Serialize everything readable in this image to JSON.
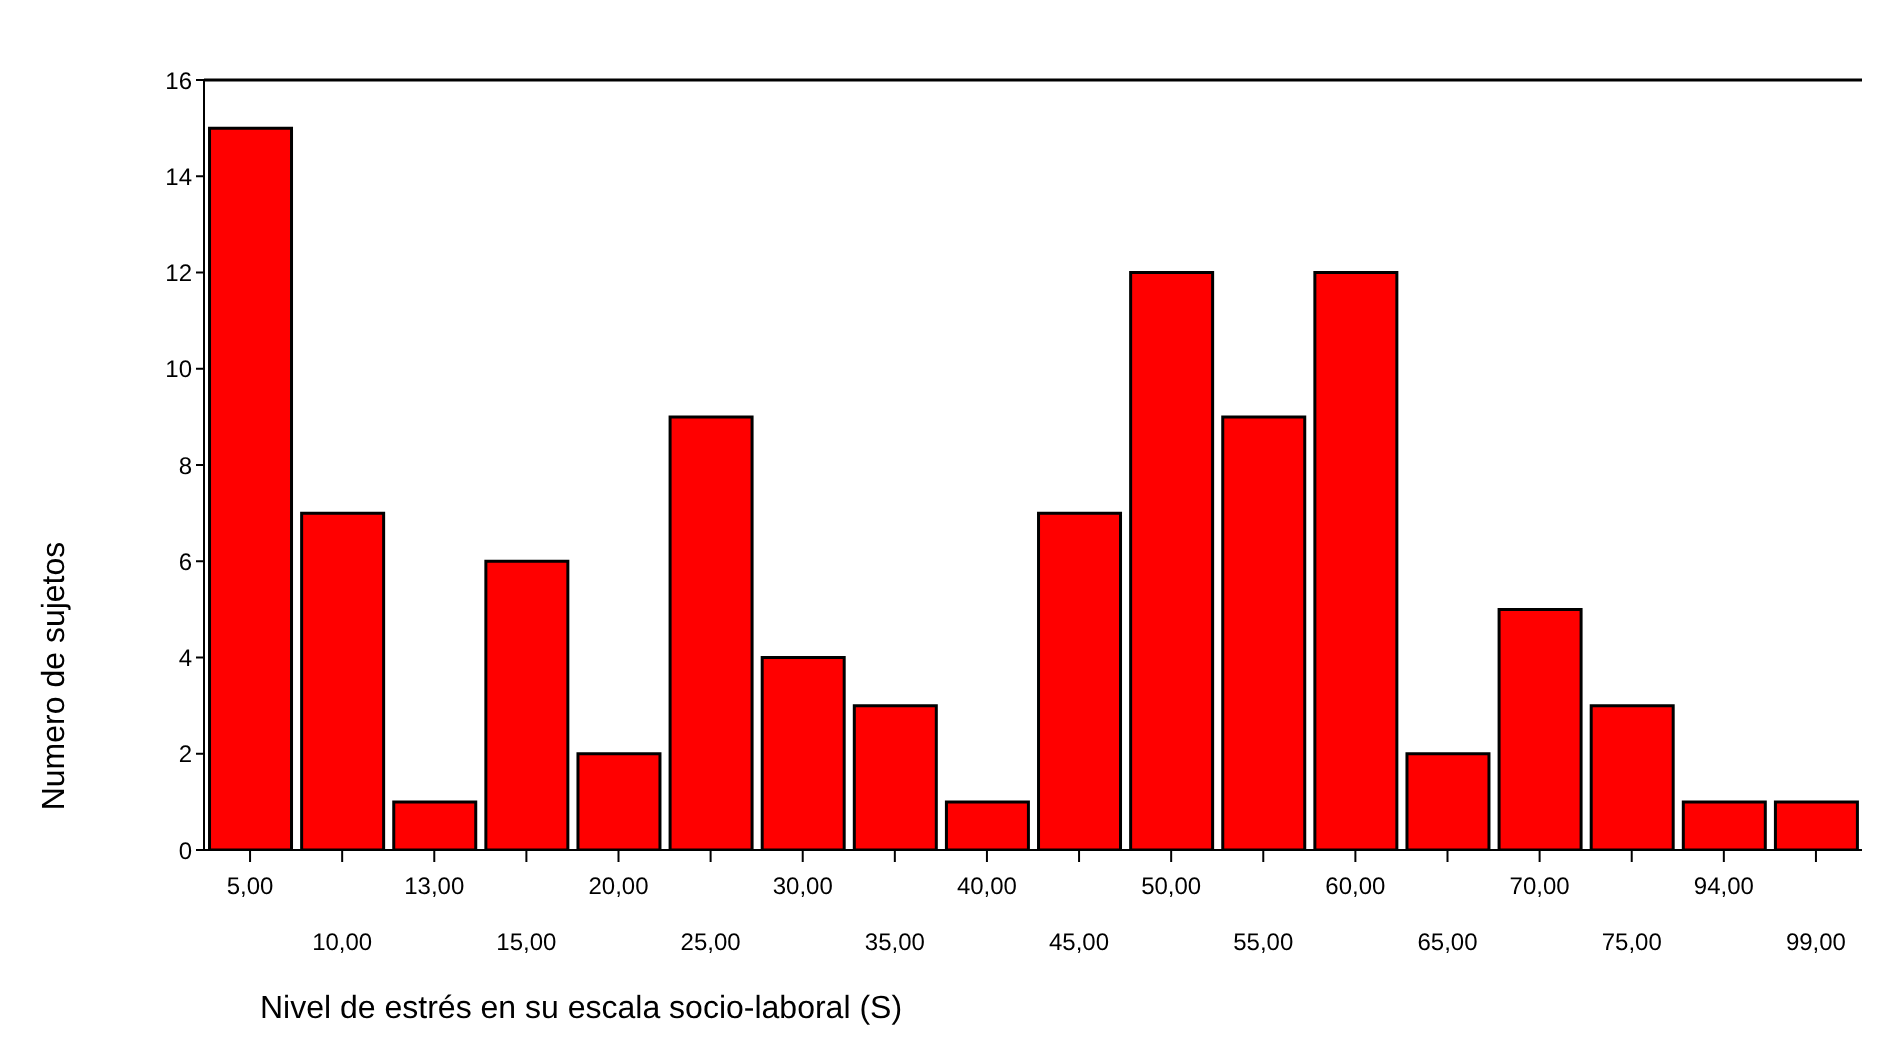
{
  "chart_data": {
    "type": "bar",
    "xlabel": "Nivel de estrés en su escala socio-laboral (S)",
    "ylabel": "Numero de sujetos",
    "categories": [
      "5,00",
      "10,00",
      "13,00",
      "15,00",
      "20,00",
      "25,00",
      "30,00",
      "35,00",
      "40,00",
      "45,00",
      "50,00",
      "55,00",
      "60,00",
      "65,00",
      "70,00",
      "75,00",
      "94,00",
      "99,00"
    ],
    "values": [
      15,
      7,
      1,
      6,
      2,
      9,
      4,
      3,
      1,
      7,
      12,
      9,
      12,
      2,
      5,
      3,
      1,
      1
    ],
    "color": "#ff0000",
    "ylim": [
      0,
      16
    ],
    "yticks": [
      0,
      2,
      4,
      6,
      8,
      10,
      12,
      14,
      16
    ]
  }
}
